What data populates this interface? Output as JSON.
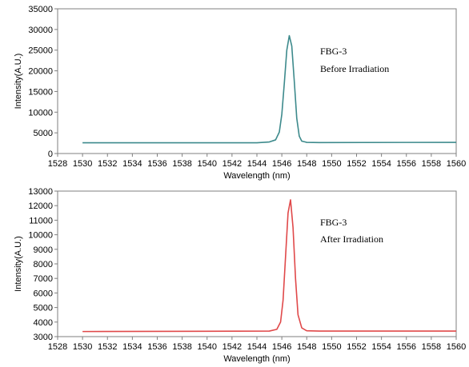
{
  "chart_data": [
    {
      "type": "line",
      "xlabel": "Wavelength (nm)",
      "ylabel": "Intensity(A.U.)",
      "xlim": [
        1530,
        1560
      ],
      "ylim": [
        0,
        35000
      ],
      "x_ticks": [
        1528,
        1530,
        1532,
        1534,
        1536,
        1538,
        1540,
        1542,
        1544,
        1546,
        1548,
        1550,
        1552,
        1554,
        1556,
        1558,
        1560
      ],
      "y_ticks": [
        0,
        5000,
        10000,
        15000,
        20000,
        25000,
        30000,
        35000
      ],
      "grid": false,
      "annotations": [
        "FBG-3",
        "Before Irradiation"
      ],
      "series": [
        {
          "color": "#3d8a8c",
          "x": [
            1530,
            1544,
            1545,
            1545.5,
            1545.8,
            1546.0,
            1546.2,
            1546.4,
            1546.6,
            1546.8,
            1547.0,
            1547.2,
            1547.4,
            1547.6,
            1548,
            1549,
            1560
          ],
          "y": [
            2600,
            2600,
            2800,
            3300,
            5200,
            9500,
            17000,
            25000,
            28500,
            26000,
            17500,
            8500,
            4200,
            3000,
            2700,
            2650,
            2700
          ]
        }
      ]
    },
    {
      "type": "line",
      "xlabel": "Wavelength (nm)",
      "ylabel": "Intensity(A.U.)",
      "xlim": [
        1530,
        1560
      ],
      "ylim": [
        3000,
        13000
      ],
      "x_ticks": [
        1528,
        1530,
        1532,
        1534,
        1536,
        1538,
        1540,
        1542,
        1544,
        1546,
        1548,
        1550,
        1552,
        1554,
        1556,
        1558,
        1560
      ],
      "y_ticks": [
        3000,
        4000,
        5000,
        6000,
        7000,
        8000,
        9000,
        10000,
        11000,
        12000,
        13000
      ],
      "grid": false,
      "annotations": [
        "FBG-3",
        "After Irradiation"
      ],
      "series": [
        {
          "color": "#e0494a",
          "x": [
            1530,
            1545,
            1545.6,
            1545.9,
            1546.1,
            1546.3,
            1546.5,
            1546.7,
            1546.9,
            1547.1,
            1547.3,
            1547.6,
            1548,
            1549,
            1560
          ],
          "y": [
            3350,
            3380,
            3500,
            4000,
            5500,
            8500,
            11500,
            12400,
            10500,
            7000,
            4500,
            3600,
            3400,
            3380,
            3380
          ]
        }
      ]
    }
  ]
}
